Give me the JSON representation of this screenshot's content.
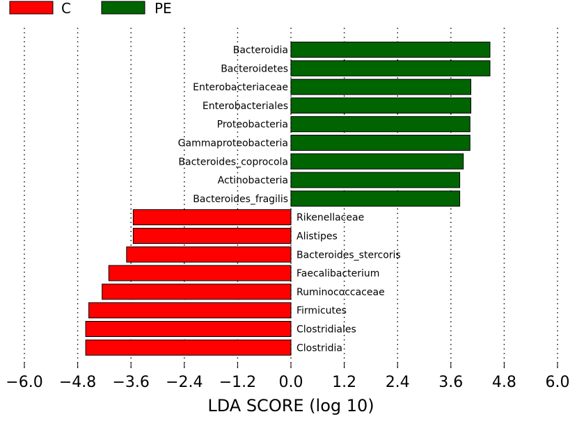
{
  "chart_data": {
    "type": "bar",
    "orientation": "horizontal",
    "title": "",
    "xlabel": "LDA SCORE (log 10)",
    "ylabel": "",
    "xlim": [
      -6.0,
      6.0
    ],
    "xticks": [
      -6.0,
      -4.8,
      -3.6,
      -2.4,
      -1.2,
      0.0,
      1.2,
      2.4,
      3.6,
      4.8,
      6.0
    ],
    "xtick_labels": [
      "−6.0",
      "−4.8",
      "−3.6",
      "−2.4",
      "−1.2",
      "0.0",
      "1.2",
      "2.4",
      "3.6",
      "4.8",
      "6.0"
    ],
    "grid": "vertical dotted",
    "legend": {
      "placement": "top-left",
      "entries": [
        {
          "name": "C",
          "color": "#ff0000"
        },
        {
          "name": "PE",
          "color": "#006400"
        }
      ]
    },
    "categories": [
      "Bacteroidia",
      "Bacteroidetes",
      "Enterobacteriaceae",
      "Enterobacteriales",
      "Proteobacteria",
      "Gammaproteobacteria",
      "Bacteroides_coprocola",
      "Actinobacteria",
      "Bacteroides_fragilis",
      "Rikenellaceae",
      "Alistipes",
      "Bacteroides_stercoris",
      "Faecalibacterium",
      "Ruminococcaceae",
      "Firmicutes",
      "Clostridiales",
      "Clostridia"
    ],
    "values": [
      4.48,
      4.48,
      4.05,
      4.05,
      4.03,
      4.03,
      3.88,
      3.8,
      3.8,
      -3.55,
      -3.55,
      -3.7,
      -4.1,
      -4.25,
      -4.55,
      -4.62,
      -4.62
    ],
    "groups": [
      "PE",
      "PE",
      "PE",
      "PE",
      "PE",
      "PE",
      "PE",
      "PE",
      "PE",
      "C",
      "C",
      "C",
      "C",
      "C",
      "C",
      "C",
      "C"
    ]
  }
}
